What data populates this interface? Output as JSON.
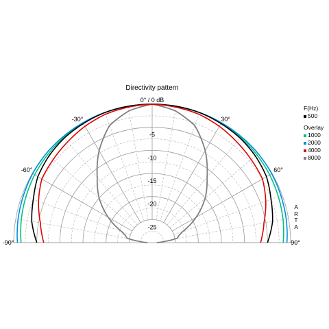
{
  "chart_data": {
    "type": "polar",
    "title": "Directivity pattern",
    "theta_range_deg": [
      -90,
      90
    ],
    "angle_ticks": [
      {
        "deg": -90,
        "label": "-90°"
      },
      {
        "deg": -60,
        "label": "-60°"
      },
      {
        "deg": -30,
        "label": "-30°"
      },
      {
        "deg": 0,
        "label": "0° / 0 dB"
      },
      {
        "deg": 30,
        "label": "30°"
      },
      {
        "deg": 60,
        "label": "60°"
      },
      {
        "deg": 90,
        "label": "90°"
      }
    ],
    "radial_range_db": [
      -30,
      0
    ],
    "radial_ticks": [
      {
        "db": -5,
        "label": "-5"
      },
      {
        "db": -10,
        "label": "-10"
      },
      {
        "db": -15,
        "label": "-15"
      },
      {
        "db": -20,
        "label": "-20"
      },
      {
        "db": -25,
        "label": "-25"
      }
    ],
    "grid": true,
    "legend": {
      "placement": "right",
      "header": "F(Hz)",
      "overlay_label": "Overlay"
    },
    "series": [
      {
        "name": "500",
        "color": "#000000",
        "angles": [
          -90,
          -80,
          -70,
          -60,
          -50,
          -40,
          -30,
          -20,
          -10,
          0,
          10,
          20,
          30,
          40,
          50,
          60,
          70,
          80,
          90
        ],
        "values": [
          -5,
          -3.5,
          -2.6,
          -1.4,
          -0.8,
          -0.4,
          -0.2,
          0,
          0,
          0,
          0,
          0,
          -0.2,
          -0.4,
          -0.8,
          -1.4,
          -2.6,
          -3.5,
          -5
        ]
      },
      {
        "name": "1000",
        "color": "#00c080",
        "angles": [
          -90,
          -80,
          -70,
          -60,
          -50,
          -40,
          -30,
          -20,
          -10,
          0,
          10,
          20,
          30,
          40,
          50,
          60,
          70,
          80,
          90
        ],
        "values": [
          -1.6,
          -1.2,
          -0.9,
          -0.6,
          -0.4,
          -0.2,
          -0.1,
          0,
          0,
          0,
          0,
          0,
          -0.1,
          -0.2,
          -0.4,
          -0.6,
          -0.9,
          -1.2,
          -1.6
        ]
      },
      {
        "name": "2000",
        "color": "#0090e0",
        "angles": [
          -90,
          -80,
          -70,
          -60,
          -50,
          -40,
          -30,
          -20,
          -10,
          0,
          10,
          20,
          30,
          40,
          50,
          60,
          70,
          80,
          90
        ],
        "values": [
          -0.8,
          -0.5,
          -0.3,
          -0.1,
          0,
          0,
          0,
          0,
          0,
          0,
          0,
          0,
          0,
          0,
          0,
          -0.1,
          -0.3,
          -0.5,
          -0.8
        ]
      },
      {
        "name": "4000",
        "color": "#e00000",
        "angles": [
          -90,
          -80,
          -70,
          -60,
          -50,
          -40,
          -30,
          -20,
          -10,
          0,
          10,
          20,
          30,
          40,
          50,
          60,
          70,
          80,
          90
        ],
        "values": [
          -6.5,
          -5.4,
          -3.8,
          -2.4,
          -2.0,
          -1.5,
          -0.9,
          -0.4,
          -0.2,
          0,
          -0.2,
          -0.4,
          -0.9,
          -1.5,
          -2.0,
          -2.4,
          -3.8,
          -5.4,
          -6.5
        ]
      },
      {
        "name": "8000",
        "color": "#808080",
        "angles": [
          -90,
          -85,
          -80,
          -75,
          -70,
          -60,
          -50,
          -40,
          -30,
          -20,
          -10,
          0,
          10,
          20,
          30,
          40,
          50,
          60,
          70,
          75,
          80,
          85,
          90
        ],
        "values": [
          -29,
          -27.5,
          -24.5,
          -24,
          -23,
          -19,
          -15,
          -11.5,
          -7,
          -3,
          -1,
          0,
          -1,
          -3,
          -7,
          -11.5,
          -15,
          -19,
          -23,
          -24,
          -24.5,
          -27.5,
          -29
        ]
      }
    ]
  },
  "watermark": "ARTA"
}
